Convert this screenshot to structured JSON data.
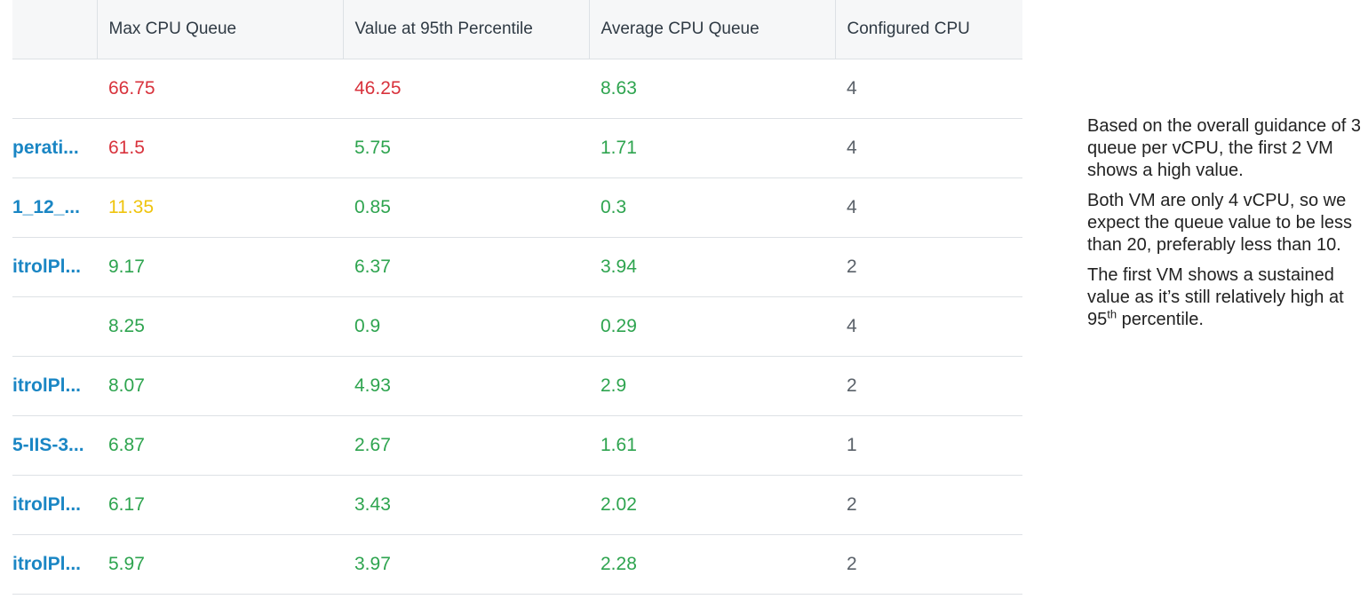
{
  "colors": {
    "red": "#d8323c",
    "yellow": "#efc40e",
    "green": "#2ea44f"
  },
  "table": {
    "columns": [
      "",
      "Max CPU Queue",
      "Value at 95th Percentile",
      "Average CPU Queue",
      "Configured CPU"
    ],
    "rows": [
      {
        "name": "",
        "max": "66.75",
        "max_status": "red",
        "p95": "46.25",
        "p95_status": "red",
        "avg": "8.63",
        "avg_status": "green",
        "cpu": "4"
      },
      {
        "name": "perati...",
        "max": "61.5",
        "max_status": "red",
        "p95": "5.75",
        "p95_status": "green",
        "avg": "1.71",
        "avg_status": "green",
        "cpu": "4"
      },
      {
        "name": "1_12_...",
        "max": "11.35",
        "max_status": "yellow",
        "p95": "0.85",
        "p95_status": "green",
        "avg": "0.3",
        "avg_status": "green",
        "cpu": "4"
      },
      {
        "name": "itrolPl...",
        "max": "9.17",
        "max_status": "green",
        "p95": "6.37",
        "p95_status": "green",
        "avg": "3.94",
        "avg_status": "green",
        "cpu": "2"
      },
      {
        "name": "",
        "max": "8.25",
        "max_status": "green",
        "p95": "0.9",
        "p95_status": "green",
        "avg": "0.29",
        "avg_status": "green",
        "cpu": "4"
      },
      {
        "name": "itrolPl...",
        "max": "8.07",
        "max_status": "green",
        "p95": "4.93",
        "p95_status": "green",
        "avg": "2.9",
        "avg_status": "green",
        "cpu": "2"
      },
      {
        "name": "5-IIS-3...",
        "max": "6.87",
        "max_status": "green",
        "p95": "2.67",
        "p95_status": "green",
        "avg": "1.61",
        "avg_status": "green",
        "cpu": "1"
      },
      {
        "name": "itrolPl...",
        "max": "6.17",
        "max_status": "green",
        "p95": "3.43",
        "p95_status": "green",
        "avg": "2.02",
        "avg_status": "green",
        "cpu": "2"
      },
      {
        "name": "itrolPl...",
        "max": "5.97",
        "max_status": "green",
        "p95": "3.97",
        "p95_status": "green",
        "avg": "2.28",
        "avg_status": "green",
        "cpu": "2"
      }
    ]
  },
  "note": {
    "p1": "Based on the overall guidance of 3 queue per vCPU, the first 2 VM shows a high value.",
    "p2": "Both VM are only 4 vCPU, so we expect the queue value to be less than 20, preferably less than 10.",
    "p3_before": "The first VM shows a sustained value as it’s still relatively high at 95",
    "p3_sup": "th",
    "p3_after": " percentile."
  }
}
